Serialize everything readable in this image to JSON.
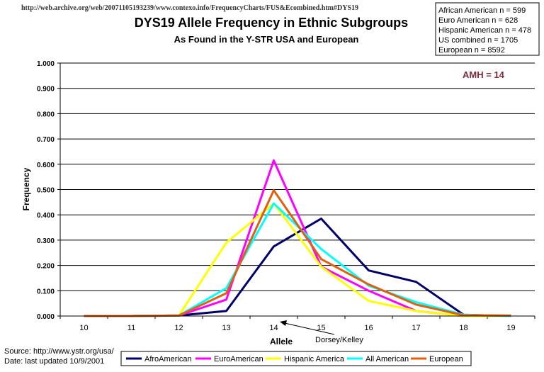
{
  "header": {
    "url": "http://web.archive.org/web/20071105193239/www.contexo.info/FrequencyCharts/FUS&Ecombined.htm#DYS19"
  },
  "sample_info": [
    "African American  n = 599",
    "Euro American n =  628",
    "Hispanic American n = 478",
    "US combined n = 1705",
    "European n = 8592"
  ],
  "source": {
    "line1": "Source:  http://www.ystr.org/usa/",
    "line2": "Date:  last updated 10/9/2001"
  },
  "chart_data": {
    "type": "line",
    "title": "DYS19 Allele Frequency in Ethnic Subgroups",
    "subtitle": "As Found in the  Y-STR USA and European",
    "xlabel": "Allele",
    "ylabel": "Frequency",
    "x": [
      10,
      11,
      12,
      13,
      14,
      15,
      16,
      17,
      18,
      19
    ],
    "ylim": [
      0,
      1
    ],
    "yticks": [
      "0.000",
      "0.100",
      "0.200",
      "0.300",
      "0.400",
      "0.500",
      "0.600",
      "0.700",
      "0.800",
      "0.900",
      "1.000"
    ],
    "grid": true,
    "legend_position": "bottom",
    "series": [
      {
        "name": "AfroAmerican",
        "color": "#000066",
        "values": [
          0,
          0,
          0.002,
          0.02,
          0.275,
          0.385,
          0.18,
          0.135,
          0.005,
          0
        ]
      },
      {
        "name": "EuroAmerican",
        "color": "#ff00ff",
        "values": [
          0,
          0,
          0.002,
          0.065,
          0.615,
          0.195,
          0.1,
          0.02,
          0,
          0
        ]
      },
      {
        "name": "Hispanic America",
        "color": "#ffff00",
        "values": [
          0,
          0,
          0.002,
          0.29,
          0.445,
          0.195,
          0.06,
          0.02,
          0,
          0
        ]
      },
      {
        "name": "All American",
        "color": "#00ffff",
        "values": [
          0,
          0,
          0.002,
          0.11,
          0.445,
          0.265,
          0.12,
          0.055,
          0.005,
          0
        ]
      },
      {
        "name": "European",
        "color": "#e06010",
        "values": [
          0,
          0,
          0.002,
          0.09,
          0.497,
          0.225,
          0.125,
          0.045,
          0.003,
          0.002
        ]
      }
    ],
    "annotations": [
      {
        "text": "AMH = 14"
      },
      {
        "text": "Dorsey/Kelley",
        "points_to_x": 14
      }
    ]
  }
}
